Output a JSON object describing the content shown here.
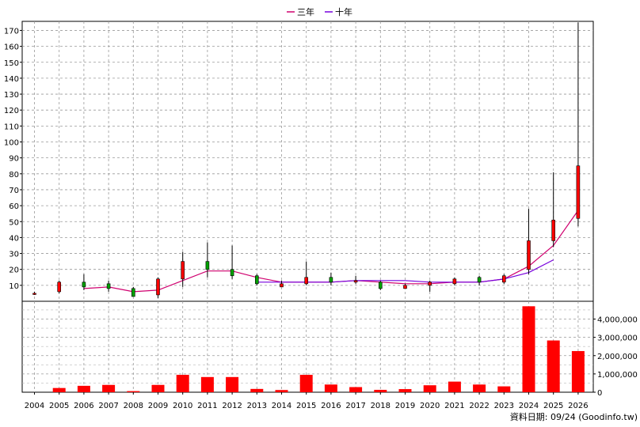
{
  "legend": [
    {
      "label": "三年",
      "color": "#d0006f"
    },
    {
      "label": "十年",
      "color": "#7700dd"
    }
  ],
  "source_note": "資料日期: 09/24 (Goodinfo.tw)",
  "chart_data": [
    {
      "type": "candlestick",
      "x": [
        "2004",
        "2005",
        "2006",
        "2007",
        "2008",
        "2009",
        "2010",
        "2011",
        "2012",
        "2013",
        "2014",
        "2015",
        "2016",
        "2017",
        "2018",
        "2019",
        "2020",
        "2021",
        "2022",
        "2023",
        "2024",
        "2025",
        "2026"
      ],
      "ylim": [
        0,
        175
      ],
      "yticks": [
        10,
        20,
        30,
        40,
        50,
        60,
        70,
        80,
        90,
        100,
        110,
        120,
        130,
        140,
        150,
        160,
        170
      ],
      "grid": true,
      "colors": {
        "up": "#ff0000",
        "down": "#00a000"
      },
      "candles": [
        {
          "o": 5,
          "h": 6,
          "l": 4,
          "c": 5
        },
        {
          "o": 6,
          "h": 13,
          "l": 5,
          "c": 12
        },
        {
          "o": 12,
          "h": 17,
          "l": 7,
          "c": 9
        },
        {
          "o": 11,
          "h": 13,
          "l": 6,
          "c": 8
        },
        {
          "o": 8,
          "h": 9,
          "l": 3,
          "c": 3
        },
        {
          "o": 4,
          "h": 15,
          "l": 2,
          "c": 14
        },
        {
          "o": 14,
          "h": 31,
          "l": 9,
          "c": 25
        },
        {
          "o": 25,
          "h": 37,
          "l": 15,
          "c": 20
        },
        {
          "o": 20,
          "h": 35,
          "l": 14,
          "c": 16
        },
        {
          "o": 16,
          "h": 17,
          "l": 10,
          "c": 11
        },
        {
          "o": 9,
          "h": 13,
          "l": 9,
          "c": 11
        },
        {
          "o": 11,
          "h": 25,
          "l": 10,
          "c": 15
        },
        {
          "o": 15,
          "h": 18,
          "l": 10,
          "c": 12
        },
        {
          "o": 12,
          "h": 16,
          "l": 11,
          "c": 13
        },
        {
          "o": 12,
          "h": 13,
          "l": 7,
          "c": 8
        },
        {
          "o": 8,
          "h": 11,
          "l": 8,
          "c": 10
        },
        {
          "o": 10,
          "h": 13,
          "l": 6,
          "c": 12
        },
        {
          "o": 11,
          "h": 15,
          "l": 10,
          "c": 14
        },
        {
          "o": 15,
          "h": 16,
          "l": 10,
          "c": 12
        },
        {
          "o": 12,
          "h": 17,
          "l": 11,
          "c": 16
        },
        {
          "o": 20,
          "h": 58,
          "l": 17,
          "c": 38
        },
        {
          "o": 38,
          "h": 81,
          "l": 34,
          "c": 51
        },
        {
          "o": 52,
          "h": 175,
          "l": 47,
          "c": 85
        }
      ],
      "lines": [
        {
          "name": "三年",
          "color": "#d0006f",
          "x_start": "2006",
          "values": [
            8,
            9,
            6,
            7,
            13,
            19,
            19,
            15,
            12,
            12,
            12,
            13,
            12,
            11,
            11,
            12,
            12,
            14,
            22,
            35,
            57
          ]
        },
        {
          "name": "十年",
          "color": "#7700dd",
          "x_start": "2013",
          "values": [
            12,
            12,
            12,
            12,
            13,
            13,
            13,
            12,
            12,
            12,
            14,
            18,
            26
          ]
        }
      ]
    },
    {
      "type": "bar",
      "x": [
        "2004",
        "2005",
        "2006",
        "2007",
        "2008",
        "2009",
        "2010",
        "2011",
        "2012",
        "2013",
        "2014",
        "2015",
        "2016",
        "2017",
        "2018",
        "2019",
        "2020",
        "2021",
        "2022",
        "2023",
        "2024",
        "2025",
        "2026"
      ],
      "values": [
        0,
        230000,
        350000,
        400000,
        60000,
        400000,
        950000,
        830000,
        830000,
        180000,
        120000,
        950000,
        420000,
        280000,
        130000,
        170000,
        380000,
        580000,
        420000,
        320000,
        4700000,
        2830000,
        2250000
      ],
      "ylim": [
        0,
        4800000
      ],
      "ytick_labels": [
        "0",
        "1,000,000",
        "2,000,000",
        "3,000,000",
        "4,000,000"
      ],
      "yticks": [
        0,
        1000000,
        2000000,
        3000000,
        4000000
      ],
      "color": "#ff0000"
    }
  ]
}
